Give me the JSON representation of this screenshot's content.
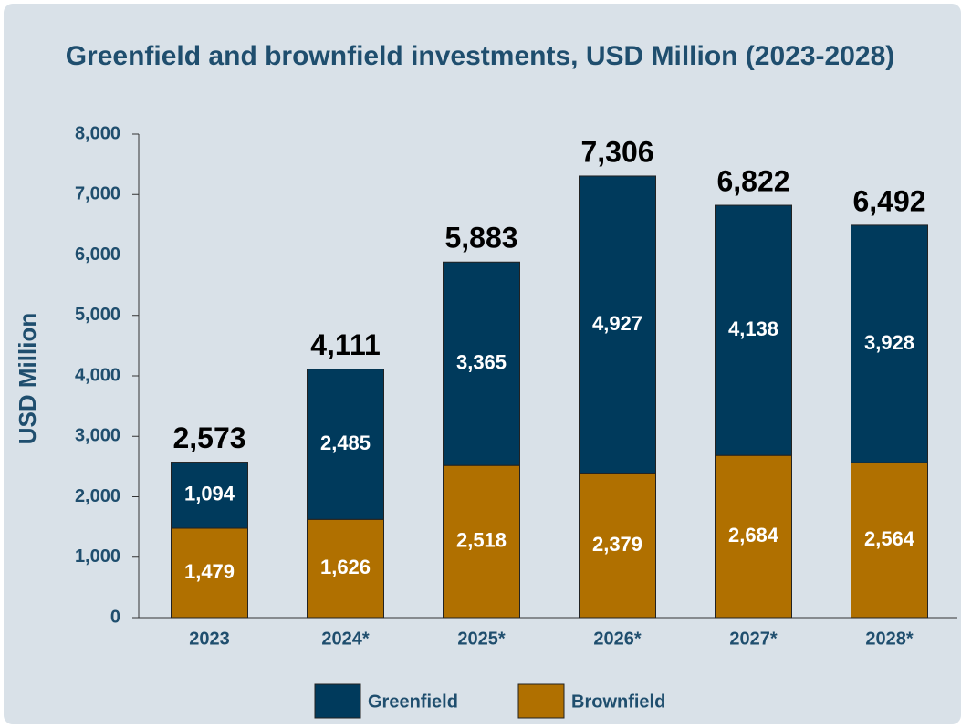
{
  "chart_data": {
    "type": "stacked_bar",
    "title": "Greenfield and brownfield investments, USD Million (2023-2028)",
    "y_label": "USD Million",
    "categories": [
      "2023",
      "2024*",
      "2025*",
      "2026*",
      "2027*",
      "2028*"
    ],
    "series": [
      {
        "name": "Brownfield",
        "color": "#b07000",
        "values": [
          1479,
          1626,
          2518,
          2379,
          2684,
          2564
        ],
        "value_labels": [
          "1,479",
          "1,626",
          "2,518",
          "2,379",
          "2,684",
          "2,564"
        ]
      },
      {
        "name": "Greenfield",
        "color": "#003a5c",
        "values": [
          1094,
          2485,
          3365,
          4927,
          4138,
          3928
        ],
        "value_labels": [
          "1,094",
          "2,485",
          "3,365",
          "4,927",
          "4,138",
          "3,928"
        ]
      }
    ],
    "totals": [
      2573,
      4111,
      5883,
      7306,
      6822,
      6492
    ],
    "total_labels": [
      "2,573",
      "4,111",
      "5,883",
      "7,306",
      "6,822",
      "6,492"
    ],
    "ylim": [
      0,
      8000
    ],
    "yticks": [
      0,
      {
        "value": 1000,
        "label": "1,000"
      },
      {
        "value": 2000,
        "label": "2,000"
      },
      {
        "value": 3000,
        "label": "3,000"
      },
      {
        "value": 4000,
        "label": "4,000"
      },
      {
        "value": 5000,
        "label": "5,000"
      },
      {
        "value": 6000,
        "label": "6,000"
      },
      {
        "value": 7000,
        "label": "7,000"
      },
      {
        "value": 8000,
        "label": "8,000"
      }
    ],
    "legend": [
      "Greenfield",
      "Brownfield"
    ]
  }
}
